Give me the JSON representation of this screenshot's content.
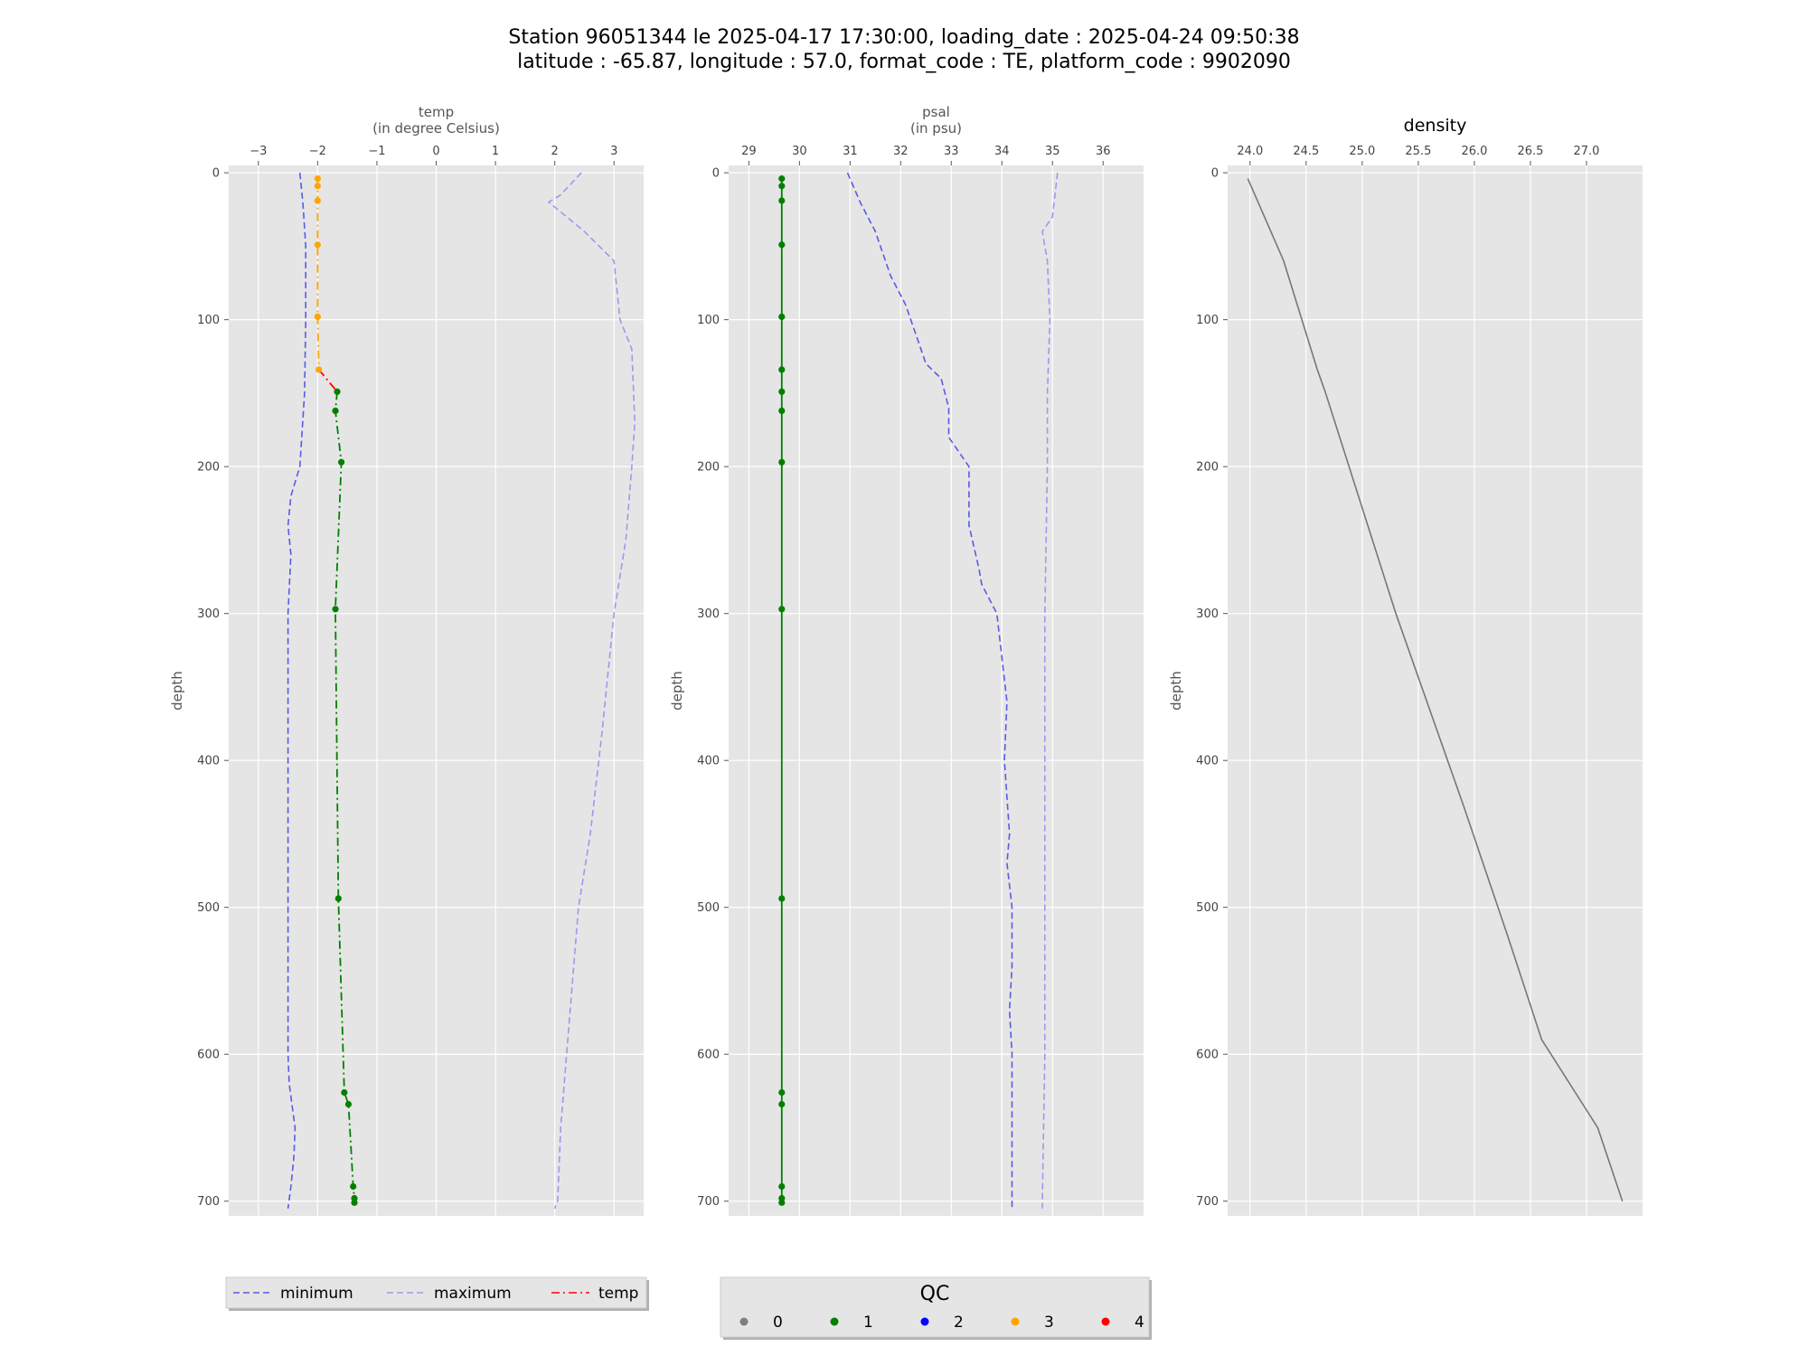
{
  "title": {
    "line1": "Station 96051344 le 2025-04-17 17:30:00, loading_date : 2025-04-24 09:50:38",
    "line2": "latitude : -65.87, longitude : 57.0, format_code : TE, platform_code : 9902090"
  },
  "colors": {
    "minimum": "#5a5ae6",
    "maximum": "#9a9aee",
    "temp_line": "#ff0000",
    "qc_0": "#808080",
    "qc_1": "#008000",
    "qc_2": "#0000ff",
    "qc_3": "#ffa500",
    "qc_4": "#ff0000",
    "density_line": "#777777",
    "panel_bg": "#e5e5e5"
  },
  "chart_data": [
    {
      "type": "line",
      "id": "temp",
      "xlabel": "temp",
      "xlabel_unit": "(in degree Celsius)",
      "ylabel": "depth",
      "xlim": [
        -3.5,
        3.5
      ],
      "ylim": [
        710,
        -5
      ],
      "x_ticks": [
        -3,
        -2,
        -1,
        0,
        1,
        2,
        3
      ],
      "x_tick_labels": [
        "−3",
        "−2",
        "−1",
        "0",
        "1",
        "2",
        "3"
      ],
      "y_ticks": [
        0,
        100,
        200,
        300,
        400,
        500,
        600,
        700
      ],
      "y_tick_labels": [
        "0",
        "100",
        "200",
        "300",
        "400",
        "500",
        "600",
        "700"
      ],
      "grid": true,
      "series": [
        {
          "name": "minimum",
          "style": "dashed",
          "points": [
            [
              -2.3,
              0
            ],
            [
              -2.25,
              20
            ],
            [
              -2.2,
              50
            ],
            [
              -2.2,
              100
            ],
            [
              -2.22,
              150
            ],
            [
              -2.3,
              200
            ],
            [
              -2.45,
              220
            ],
            [
              -2.5,
              240
            ],
            [
              -2.45,
              260
            ],
            [
              -2.5,
              300
            ],
            [
              -2.5,
              400
            ],
            [
              -2.5,
              500
            ],
            [
              -2.5,
              600
            ],
            [
              -2.48,
              620
            ],
            [
              -2.38,
              650
            ],
            [
              -2.4,
              670
            ],
            [
              -2.45,
              690
            ],
            [
              -2.5,
              705
            ]
          ]
        },
        {
          "name": "maximum",
          "style": "dashed",
          "points": [
            [
              2.45,
              0
            ],
            [
              2.1,
              15
            ],
            [
              1.9,
              20
            ],
            [
              2.5,
              40
            ],
            [
              3.0,
              60
            ],
            [
              3.1,
              100
            ],
            [
              3.3,
              120
            ],
            [
              3.35,
              170
            ],
            [
              3.3,
              200
            ],
            [
              3.2,
              250
            ],
            [
              3.0,
              300
            ],
            [
              2.8,
              380
            ],
            [
              2.6,
              450
            ],
            [
              2.4,
              500
            ],
            [
              2.2,
              600
            ],
            [
              2.1,
              650
            ],
            [
              2.05,
              700
            ],
            [
              2.0,
              705
            ]
          ]
        },
        {
          "name": "temp",
          "style": "dashdot",
          "segments": [
            {
              "qc": 3,
              "points": [
                [
                  -2.0,
                  4
                ],
                [
                  -2.0,
                  9
                ],
                [
                  -2.0,
                  19
                ],
                [
                  -2.0,
                  49
                ],
                [
                  -2.0,
                  98
                ],
                [
                  -1.98,
                  134
                ]
              ]
            },
            {
              "qc": 4,
              "points": [
                [
                  -1.98,
                  134
                ],
                [
                  -1.67,
                  149
                ]
              ]
            },
            {
              "qc": 1,
              "points": [
                [
                  -1.67,
                  149
                ],
                [
                  -1.7,
                  162
                ],
                [
                  -1.6,
                  197
                ],
                [
                  -1.7,
                  297
                ],
                [
                  -1.65,
                  494
                ],
                [
                  -1.55,
                  626
                ],
                [
                  -1.48,
                  634
                ],
                [
                  -1.4,
                  690
                ],
                [
                  -1.38,
                  698
                ],
                [
                  -1.38,
                  701
                ]
              ]
            }
          ]
        }
      ]
    },
    {
      "type": "line",
      "id": "psal",
      "xlabel": "psal",
      "xlabel_unit": "(in psu)",
      "ylabel": "depth",
      "xlim": [
        28.6,
        36.8
      ],
      "ylim": [
        710,
        -5
      ],
      "x_ticks": [
        29,
        30,
        31,
        32,
        33,
        34,
        35,
        36
      ],
      "x_tick_labels": [
        "29",
        "30",
        "31",
        "32",
        "33",
        "34",
        "35",
        "36"
      ],
      "y_ticks": [
        0,
        100,
        200,
        300,
        400,
        500,
        600,
        700
      ],
      "y_tick_labels": [
        "0",
        "100",
        "200",
        "300",
        "400",
        "500",
        "600",
        "700"
      ],
      "grid": true,
      "series": [
        {
          "name": "minimum",
          "style": "dashed",
          "points": [
            [
              30.95,
              0
            ],
            [
              31.2,
              20
            ],
            [
              31.5,
              40
            ],
            [
              31.7,
              60
            ],
            [
              31.8,
              70
            ],
            [
              32.1,
              90
            ],
            [
              32.3,
              110
            ],
            [
              32.5,
              130
            ],
            [
              32.8,
              140
            ],
            [
              32.95,
              160
            ],
            [
              32.95,
              180
            ],
            [
              33.35,
              200
            ],
            [
              33.35,
              240
            ],
            [
              33.55,
              270
            ],
            [
              33.6,
              280
            ],
            [
              33.9,
              300
            ],
            [
              34.0,
              330
            ],
            [
              34.1,
              360
            ],
            [
              34.05,
              400
            ],
            [
              34.15,
              450
            ],
            [
              34.1,
              470
            ],
            [
              34.2,
              500
            ],
            [
              34.2,
              540
            ],
            [
              34.15,
              570
            ],
            [
              34.2,
              600
            ],
            [
              34.2,
              700
            ],
            [
              34.2,
              705
            ]
          ]
        },
        {
          "name": "maximum",
          "style": "dashed",
          "points": [
            [
              35.1,
              0
            ],
            [
              35.0,
              30
            ],
            [
              34.8,
              40
            ],
            [
              34.9,
              60
            ],
            [
              34.95,
              100
            ],
            [
              34.9,
              150
            ],
            [
              34.9,
              200
            ],
            [
              34.85,
              300
            ],
            [
              34.85,
              400
            ],
            [
              34.85,
              500
            ],
            [
              34.85,
              600
            ],
            [
              34.8,
              700
            ],
            [
              34.8,
              705
            ]
          ]
        },
        {
          "name": "psal",
          "style": "solid",
          "segments": [
            {
              "qc": 1,
              "points": [
                [
                  29.65,
                  4
                ],
                [
                  29.65,
                  9
                ],
                [
                  29.65,
                  19
                ],
                [
                  29.65,
                  49
                ],
                [
                  29.65,
                  98
                ],
                [
                  29.65,
                  134
                ],
                [
                  29.65,
                  149
                ],
                [
                  29.65,
                  162
                ],
                [
                  29.65,
                  197
                ],
                [
                  29.65,
                  297
                ],
                [
                  29.65,
                  494
                ],
                [
                  29.65,
                  626
                ],
                [
                  29.65,
                  634
                ],
                [
                  29.65,
                  690
                ],
                [
                  29.65,
                  698
                ],
                [
                  29.65,
                  701
                ]
              ]
            }
          ]
        }
      ]
    },
    {
      "type": "line",
      "id": "density",
      "title": "density",
      "ylabel": "depth",
      "xlim": [
        23.8,
        27.5
      ],
      "ylim": [
        710,
        -5
      ],
      "x_ticks": [
        24.0,
        24.5,
        25.0,
        25.5,
        26.0,
        26.5,
        27.0
      ],
      "x_tick_labels": [
        "24.0",
        "24.5",
        "25.0",
        "25.5",
        "26.0",
        "26.5",
        "27.0"
      ],
      "y_ticks": [
        0,
        100,
        200,
        300,
        400,
        500,
        600,
        700
      ],
      "y_tick_labels": [
        "0",
        "100",
        "200",
        "300",
        "400",
        "500",
        "600",
        "700"
      ],
      "grid": true,
      "series": [
        {
          "name": "density",
          "style": "solid",
          "points": [
            [
              23.98,
              4
            ],
            [
              24.3,
              60
            ],
            [
              24.6,
              134
            ],
            [
              24.67,
              149
            ],
            [
              25.3,
              300
            ],
            [
              25.9,
              430
            ],
            [
              26.3,
              520
            ],
            [
              26.6,
              590
            ],
            [
              27.1,
              650
            ],
            [
              27.32,
              700
            ]
          ]
        }
      ]
    }
  ],
  "legend_lines": {
    "items": [
      {
        "label": "minimum",
        "style": "dashed",
        "color_key": "minimum"
      },
      {
        "label": "maximum",
        "style": "dashed",
        "color_key": "maximum"
      },
      {
        "label": "temp",
        "style": "dashdot",
        "color_key": "temp_line"
      }
    ]
  },
  "legend_qc": {
    "title": "QC",
    "items": [
      {
        "label": "0",
        "color_key": "qc_0"
      },
      {
        "label": "1",
        "color_key": "qc_1"
      },
      {
        "label": "2",
        "color_key": "qc_2"
      },
      {
        "label": "3",
        "color_key": "qc_3"
      },
      {
        "label": "4",
        "color_key": "qc_4"
      }
    ]
  }
}
